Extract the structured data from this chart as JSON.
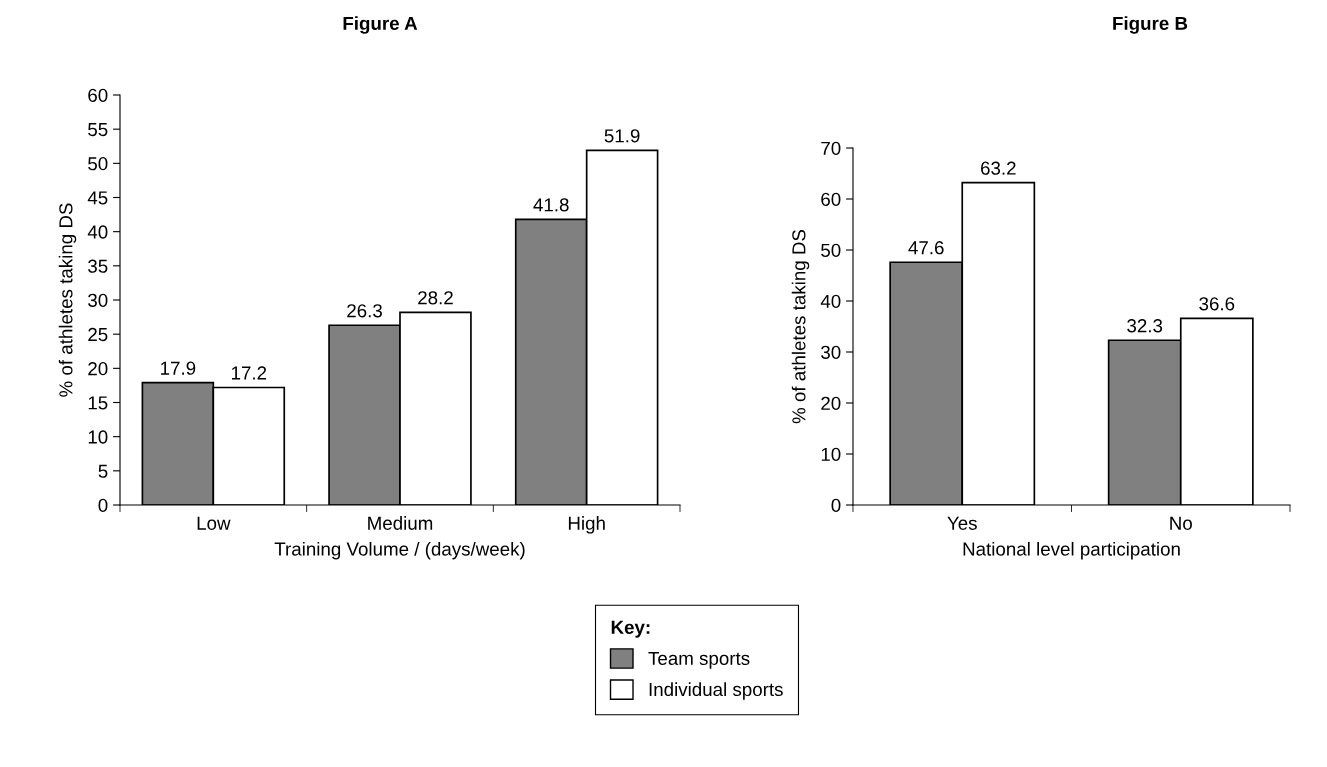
{
  "chart_data": [
    {
      "type": "bar",
      "title": "Figure A",
      "xlabel": "Training Volume / (days/week)",
      "ylabel": "% of athletes taking DS",
      "categories": [
        "Low",
        "Medium",
        "High"
      ],
      "series": [
        {
          "name": "Team sports",
          "color": "#808080",
          "values": [
            17.9,
            26.3,
            41.8
          ]
        },
        {
          "name": "Individual sports",
          "color": "#ffffff",
          "values": [
            17.2,
            28.2,
            51.9
          ]
        }
      ],
      "ylim": [
        0,
        60
      ],
      "yticks": [
        0,
        5,
        10,
        15,
        20,
        25,
        30,
        35,
        40,
        45,
        50,
        55,
        60
      ],
      "data_labels": true,
      "grid": false,
      "legend": "bottom",
      "legend_title": "Key:"
    },
    {
      "type": "bar",
      "title": "Figure B",
      "xlabel": "National level participation",
      "ylabel": "% of athletes taking DS",
      "categories": [
        "Yes",
        "No"
      ],
      "series": [
        {
          "color": "#808080",
          "values": [
            47.6,
            32.3
          ]
        },
        {
          "color": "#ffffff",
          "values": [
            63.2,
            36.6
          ]
        }
      ],
      "ylim": [
        0,
        70
      ],
      "yticks": [
        0,
        10,
        20,
        30,
        40,
        50,
        60,
        70
      ],
      "data_labels": true,
      "grid": false
    }
  ]
}
